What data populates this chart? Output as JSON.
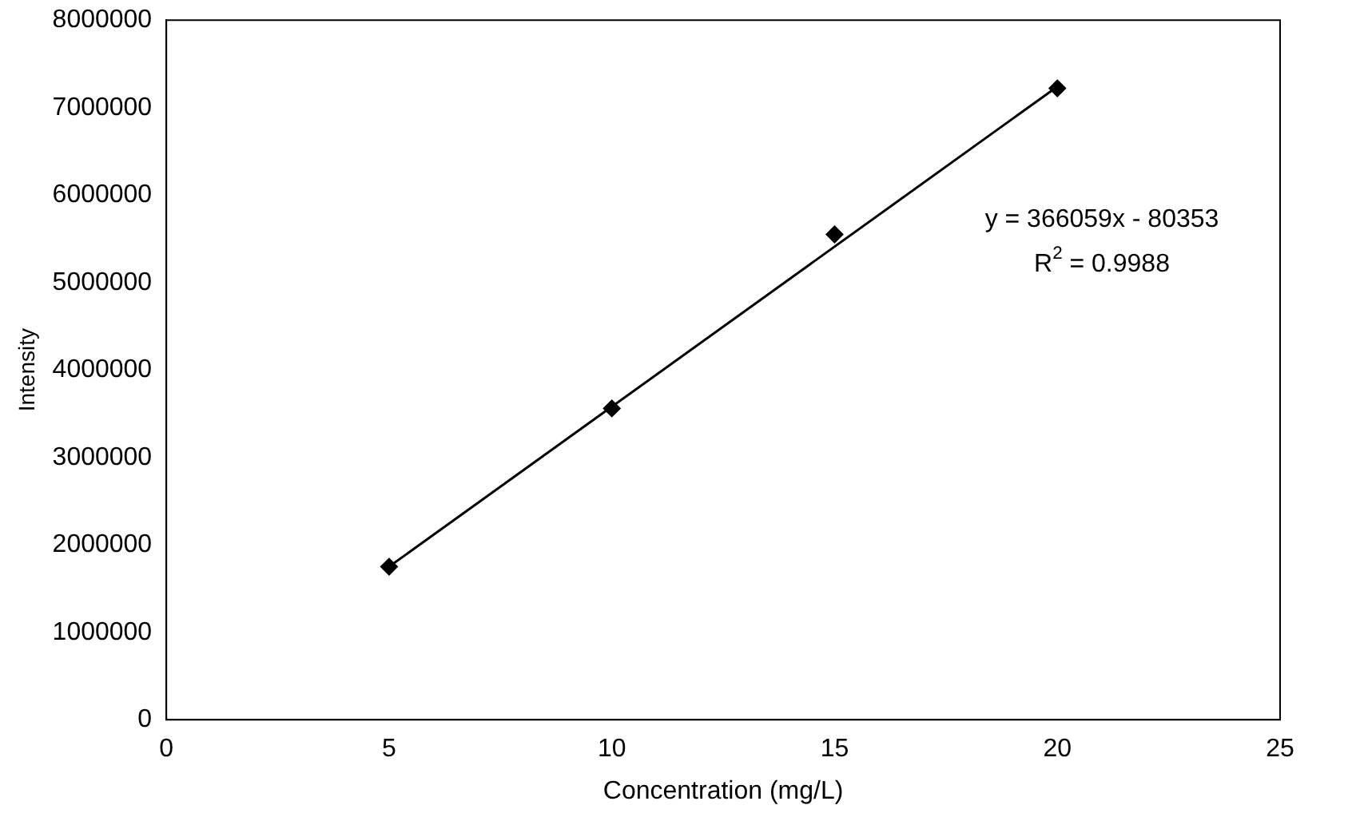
{
  "chart_data": {
    "type": "scatter",
    "xlabel": "Concentration (mg/L)",
    "ylabel": "Intensity",
    "x": [
      5,
      10,
      15,
      20
    ],
    "series": [
      {
        "type": "scatter",
        "color": "#000000",
        "marker": "diamond",
        "values": [
          1750000,
          3560000,
          5550000,
          7220000
        ]
      },
      {
        "type": "line",
        "color": "#000000",
        "marker": "none",
        "x": [
          5,
          20
        ],
        "values": [
          1750000,
          7240000
        ]
      }
    ],
    "annotations": [
      "y = 366059x - 80353",
      "R$^{2}$ = 0.9988"
    ],
    "xlim": [
      0,
      25
    ],
    "xticks": [
      0,
      5,
      10,
      15,
      20,
      25
    ],
    "ylim": [
      0,
      8000000
    ],
    "yticks": [
      0,
      1000000,
      2000000,
      3000000,
      4000000,
      5000000,
      6000000,
      7000000,
      8000000
    ],
    "grid": false,
    "legend": false
  }
}
